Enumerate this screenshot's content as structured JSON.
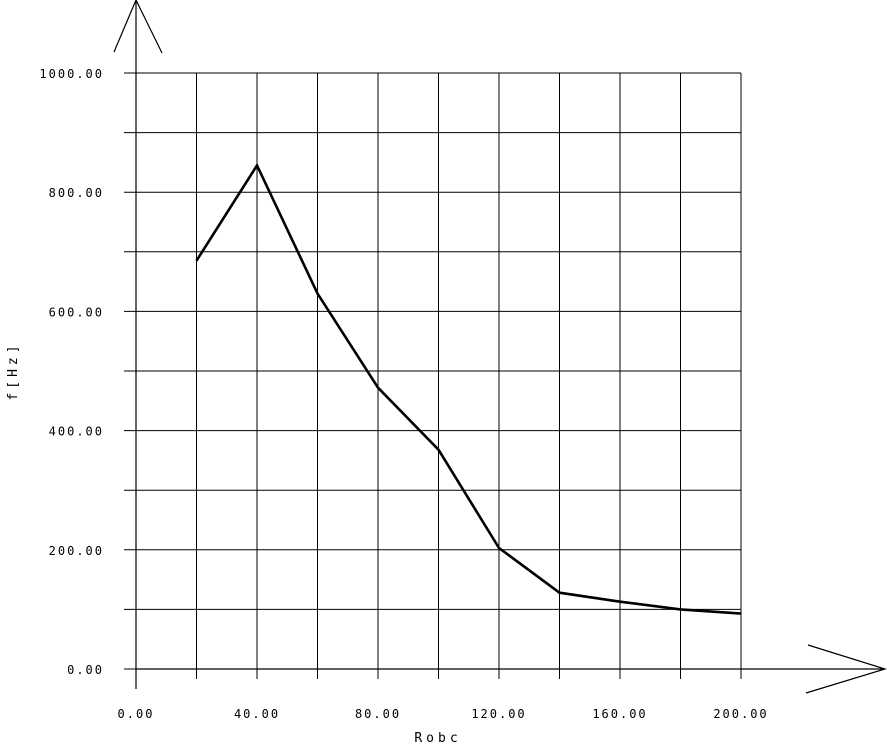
{
  "chart_data": {
    "type": "line",
    "xlabel": "Robc",
    "ylabel": "f[Hz]",
    "xlim": [
      0,
      200
    ],
    "ylim": [
      0,
      1000
    ],
    "x_ticks": [
      "0.00",
      "40.00",
      "80.00",
      "120.00",
      "160.00",
      "200.00"
    ],
    "y_ticks": [
      "0.00",
      "200.00",
      "400.00",
      "600.00",
      "800.00",
      "1000.00"
    ],
    "x_grid_step": 20,
    "y_grid_step": 100,
    "grid": true,
    "series": [
      {
        "x": [
          20,
          40,
          60,
          80,
          100,
          120,
          140,
          160,
          180,
          200
        ],
        "values": [
          685,
          845,
          630,
          472,
          368,
          203,
          128,
          113,
          100,
          93
        ]
      }
    ],
    "colors": {
      "line": "#000000",
      "grid": "#000000",
      "background": "#ffffff"
    }
  }
}
